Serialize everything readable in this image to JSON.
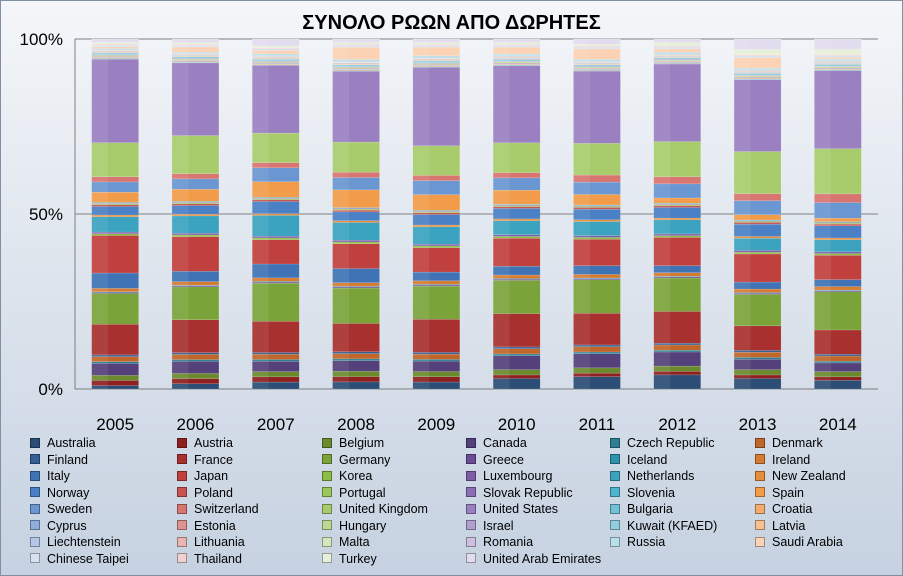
{
  "chart_data": {
    "type": "bar",
    "stacked": "percent",
    "title": "ΣΥΝΟΛΟ ΡΩΩΝ ΑΠΟ ΔΩΡΗΤΕΣ",
    "xlabel": "",
    "ylabel": "",
    "ylim": [
      0,
      100
    ],
    "yticks": [
      "0%",
      "50%",
      "100%"
    ],
    "grid": true,
    "legend": "bottom",
    "categories": [
      "2005",
      "2006",
      "2007",
      "2008",
      "2009",
      "2010",
      "2011",
      "2012",
      "2013",
      "2014"
    ],
    "series": [
      {
        "name": "Australia",
        "color": "#2c4d75",
        "values": [
          1,
          1.5,
          2,
          2,
          2,
          3,
          3.5,
          4,
          3,
          2.5
        ]
      },
      {
        "name": "Austria",
        "color": "#8e2020",
        "values": [
          1.5,
          1.5,
          1.5,
          1.5,
          1.5,
          1,
          1,
          1,
          1,
          1
        ]
      },
      {
        "name": "Belgium",
        "color": "#6b8a2e",
        "values": [
          1.5,
          1.5,
          1.5,
          1.5,
          1.5,
          1.5,
          1.5,
          1.5,
          1.5,
          1.5
        ]
      },
      {
        "name": "Canada",
        "color": "#54407a",
        "values": [
          3.5,
          3.5,
          3,
          3,
          3,
          4,
          4,
          4,
          3,
          2.5
        ]
      },
      {
        "name": "Czech Republic",
        "color": "#2d7f91",
        "values": [
          0.5,
          0.5,
          0.5,
          0.5,
          0.5,
          0.5,
          0.5,
          0.5,
          0.5,
          0.5
        ]
      },
      {
        "name": "Denmark",
        "color": "#c0662a",
        "values": [
          1.5,
          1.5,
          1.5,
          1.5,
          1.5,
          1.5,
          1.5,
          1.5,
          1.5,
          1.5
        ]
      },
      {
        "name": "Finland",
        "color": "#335f96",
        "values": [
          0.5,
          0.5,
          0.5,
          0.5,
          0.5,
          0.5,
          0.5,
          0.5,
          0.5,
          0.5
        ]
      },
      {
        "name": "France",
        "color": "#a8302e",
        "values": [
          9,
          9.5,
          9,
          8,
          9.5,
          9.5,
          9,
          9,
          7,
          7
        ]
      },
      {
        "name": "Germany",
        "color": "#7aa33a",
        "values": [
          9,
          9.5,
          11,
          10,
          9.5,
          9.5,
          9.5,
          9.5,
          9,
          11
        ]
      },
      {
        "name": "Greece",
        "color": "#6a4c98",
        "values": [
          0.3,
          0.3,
          0.3,
          0.3,
          0.3,
          0.3,
          0.3,
          0.3,
          0.3,
          0.3
        ]
      },
      {
        "name": "Iceland",
        "color": "#2d93ad",
        "values": [
          0.2,
          0.2,
          0.2,
          0.2,
          0.2,
          0.2,
          0.2,
          0.2,
          0.2,
          0.2
        ]
      },
      {
        "name": "Ireland",
        "color": "#d77b30",
        "values": [
          1,
          1,
          1,
          1,
          1,
          1,
          1,
          1,
          1,
          1
        ]
      },
      {
        "name": "Italy",
        "color": "#3f73b5",
        "values": [
          4.5,
          3,
          4,
          4,
          2.5,
          2.5,
          2.5,
          2,
          2,
          2
        ]
      },
      {
        "name": "Japan",
        "color": "#c0403d",
        "values": [
          11,
          10,
          7,
          7,
          7,
          8,
          7.5,
          8,
          8,
          7
        ]
      },
      {
        "name": "Korea",
        "color": "#8cbe44",
        "values": [
          0.5,
          0.5,
          0.5,
          0.5,
          0.5,
          0.5,
          0.5,
          0.5,
          0.5,
          0.5
        ]
      },
      {
        "name": "Luxembourg",
        "color": "#7e5ca8",
        "values": [
          0.5,
          0.5,
          0.5,
          0.5,
          0.5,
          0.5,
          0.5,
          0.5,
          0.5,
          0.5
        ]
      },
      {
        "name": "Netherlands",
        "color": "#3ba3bf",
        "values": [
          4.5,
          5,
          6,
          5,
          5,
          4,
          4,
          4,
          3.5,
          3.5
        ]
      },
      {
        "name": "New Zealand",
        "color": "#e68e3b",
        "values": [
          0.5,
          0.5,
          0.5,
          0.5,
          0.5,
          0.5,
          0.5,
          0.5,
          0.5,
          0.5
        ]
      },
      {
        "name": "Norway",
        "color": "#4a80c6",
        "values": [
          2.5,
          2.5,
          3.5,
          2.5,
          3,
          3,
          3,
          3,
          3.5,
          3.5
        ]
      },
      {
        "name": "Poland",
        "color": "#c85552",
        "values": [
          0.5,
          0.5,
          0.5,
          0.5,
          0.5,
          0.5,
          0.5,
          0.5,
          0.5,
          0.5
        ]
      },
      {
        "name": "Portugal",
        "color": "#9bc75a",
        "values": [
          0.3,
          0.3,
          0.3,
          0.3,
          0.3,
          0.3,
          0.3,
          0.3,
          0.3,
          0.3
        ]
      },
      {
        "name": "Slovak Republic",
        "color": "#8b6eb4",
        "values": [
          0.2,
          0.2,
          0.2,
          0.2,
          0.2,
          0.2,
          0.2,
          0.2,
          0.2,
          0.2
        ]
      },
      {
        "name": "Slovenia",
        "color": "#4fb5cf",
        "values": [
          0.2,
          0.2,
          0.2,
          0.2,
          0.2,
          0.2,
          0.2,
          0.2,
          0.2,
          0.2
        ]
      },
      {
        "name": "Spain",
        "color": "#f29c49",
        "values": [
          3,
          3.5,
          4.5,
          5,
          4.5,
          4,
          3,
          1.5,
          1.5,
          1
        ]
      },
      {
        "name": "Sweden",
        "color": "#6a96d2",
        "values": [
          3,
          3,
          4,
          3.5,
          4,
          3.5,
          3.5,
          4,
          4,
          4.5
        ]
      },
      {
        "name": "Switzerland",
        "color": "#d87571",
        "values": [
          1.5,
          1.5,
          1.5,
          1.5,
          1.5,
          1.5,
          2,
          2,
          2,
          2.5
        ]
      },
      {
        "name": "United Kingdom",
        "color": "#a8cc6c",
        "values": [
          10,
          11,
          8.5,
          8.5,
          8.5,
          8.5,
          9,
          10,
          12,
          13
        ]
      },
      {
        "name": "United States",
        "color": "#9a80c0",
        "values": [
          24.5,
          21,
          19.5,
          20,
          22.5,
          22,
          20.5,
          22,
          20.5,
          22.5
        ]
      },
      {
        "name": "Bulgaria",
        "color": "#72c1d6",
        "values": [
          0.2,
          0.2,
          0.2,
          0.2,
          0.2,
          0.2,
          0.2,
          0.2,
          0.2,
          0.2
        ]
      },
      {
        "name": "Croatia",
        "color": "#f5ab6b",
        "values": [
          0.2,
          0.2,
          0.2,
          0.2,
          0.2,
          0.2,
          0.2,
          0.2,
          0.2,
          0.2
        ]
      },
      {
        "name": "Cyprus",
        "color": "#8eaede",
        "values": [
          0.2,
          0.2,
          0.2,
          0.2,
          0.2,
          0.2,
          0.2,
          0.2,
          0.2,
          0.2
        ]
      },
      {
        "name": "Estonia",
        "color": "#dd9491",
        "values": [
          0.2,
          0.2,
          0.2,
          0.2,
          0.2,
          0.2,
          0.2,
          0.2,
          0.2,
          0.2
        ]
      },
      {
        "name": "Hungary",
        "color": "#bdd893",
        "values": [
          0.3,
          0.3,
          0.3,
          0.3,
          0.3,
          0.3,
          0.3,
          0.3,
          0.3,
          0.3
        ]
      },
      {
        "name": "Israel",
        "color": "#b09fcf",
        "values": [
          0.2,
          0.2,
          0.2,
          0.2,
          0.2,
          0.2,
          0.2,
          0.2,
          0.2,
          0.2
        ]
      },
      {
        "name": "Kuwait (KFAED)",
        "color": "#91cfe0",
        "values": [
          0.5,
          0.5,
          0.5,
          0.5,
          0.5,
          0.5,
          0.5,
          0.5,
          0.5,
          0.5
        ]
      },
      {
        "name": "Latvia",
        "color": "#f8c192",
        "values": [
          0.2,
          0.2,
          0.2,
          0.2,
          0.2,
          0.2,
          0.2,
          0.2,
          0.2,
          0.2
        ]
      },
      {
        "name": "Liechtenstein",
        "color": "#b3c7e8",
        "values": [
          0.2,
          0.2,
          0.2,
          0.2,
          0.2,
          0.2,
          0.2,
          0.2,
          0.2,
          0.2
        ]
      },
      {
        "name": "Lithuania",
        "color": "#e8b5b3",
        "values": [
          0.2,
          0.2,
          0.2,
          0.2,
          0.2,
          0.2,
          0.2,
          0.2,
          0.2,
          0.2
        ]
      },
      {
        "name": "Malta",
        "color": "#d4e6ba",
        "values": [
          0.2,
          0.2,
          0.2,
          0.2,
          0.2,
          0.2,
          0.2,
          0.2,
          0.2,
          0.2
        ]
      },
      {
        "name": "Romania",
        "color": "#cbc0e0",
        "values": [
          0.2,
          0.2,
          0.2,
          0.2,
          0.2,
          0.2,
          0.2,
          0.2,
          0.2,
          0.2
        ]
      },
      {
        "name": "Russia",
        "color": "#b7e0eb",
        "values": [
          0.3,
          0.3,
          0.5,
          0.5,
          0.5,
          0.5,
          0.5,
          0.5,
          0.5,
          0.5
        ]
      },
      {
        "name": "Saudi Arabia",
        "color": "#fbd2b4",
        "values": [
          0.5,
          1.5,
          1,
          3.5,
          2.5,
          2,
          3,
          1,
          3,
          0.5
        ]
      },
      {
        "name": "Chinese Taipei",
        "color": "#d6e1f2",
        "values": [
          0.5,
          0.5,
          0.5,
          0.5,
          0.5,
          0.5,
          0.5,
          0.5,
          0.5,
          0.5
        ]
      },
      {
        "name": "Thailand",
        "color": "#f1d2d1",
        "values": [
          0.3,
          0.3,
          0.3,
          0.3,
          0.3,
          0.3,
          0.3,
          0.3,
          0.3,
          0.3
        ]
      },
      {
        "name": "Turkey",
        "color": "#e6f0d8",
        "values": [
          0.5,
          0.5,
          0.5,
          0.5,
          0.5,
          0.5,
          0.5,
          1,
          1.5,
          1.5
        ]
      },
      {
        "name": "United Arab Emirates",
        "color": "#e2dcef",
        "values": [
          1,
          1,
          2,
          1,
          1,
          1,
          1.5,
          1,
          3,
          3
        ]
      }
    ]
  }
}
